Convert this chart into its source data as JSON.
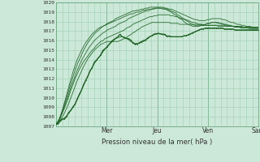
{
  "title": "",
  "xlabel": "Pression niveau de la mer( hPa )",
  "ylabel": "",
  "ylim": [
    1007,
    1020
  ],
  "xlim": [
    0,
    96
  ],
  "yticks": [
    1007,
    1008,
    1009,
    1010,
    1011,
    1012,
    1013,
    1014,
    1015,
    1016,
    1017,
    1018,
    1019,
    1020
  ],
  "day_labels": [
    "Mer",
    "Jeu",
    "Ven",
    "Sam"
  ],
  "day_positions": [
    24,
    48,
    72,
    96
  ],
  "bg_color": "#cce8d8",
  "grid_color": "#9ecfb4",
  "line_color": "#1a6020",
  "font_color": "#333333",
  "series": [
    [
      1007.2,
      1007.3,
      1007.5,
      1007.7,
      1007.9,
      1008.1,
      1008.4,
      1008.7,
      1009.0,
      1009.4,
      1009.8,
      1010.3,
      1010.8,
      1011.3,
      1011.8,
      1012.3,
      1012.8,
      1013.2,
      1013.6,
      1013.9,
      1014.2,
      1014.5,
      1014.8,
      1015.1,
      1015.3,
      1015.6,
      1015.8,
      1016.0,
      1016.2,
      1016.3,
      1016.4,
      1016.4,
      1016.3,
      1016.2,
      1016.1,
      1015.9,
      1015.8,
      1015.7,
      1015.7,
      1015.7,
      1015.8,
      1015.9,
      1016.1,
      1016.2,
      1016.4,
      1016.5,
      1016.6,
      1016.7,
      1016.7,
      1016.7,
      1016.6,
      1016.6,
      1016.5,
      1016.5,
      1016.4,
      1016.4,
      1016.4,
      1016.4,
      1016.4,
      1016.4,
      1016.5,
      1016.5,
      1016.6,
      1016.7,
      1016.8,
      1016.9,
      1017.0,
      1017.1,
      1017.2,
      1017.2,
      1017.3,
      1017.3,
      1017.3,
      1017.3,
      1017.3,
      1017.3,
      1017.3,
      1017.3,
      1017.3,
      1017.2,
      1017.2,
      1017.2,
      1017.2,
      1017.2,
      1017.1,
      1017.1,
      1017.1,
      1017.1,
      1017.1,
      1017.1,
      1017.1,
      1017.1,
      1017.1,
      1017.1,
      1017.1,
      1017.1
    ],
    [
      1007.2,
      1007.4,
      1007.7,
      1008.0,
      1008.4,
      1008.9,
      1009.4,
      1010.0,
      1010.6,
      1011.2,
      1011.8,
      1012.3,
      1012.8,
      1013.3,
      1013.7,
      1014.1,
      1014.4,
      1014.7,
      1015.0,
      1015.2,
      1015.4,
      1015.6,
      1015.7,
      1015.8,
      1015.9,
      1015.9,
      1015.9,
      1015.9,
      1015.9,
      1015.9,
      1016.0,
      1016.1,
      1016.2,
      1016.3,
      1016.5,
      1016.6,
      1016.8,
      1016.9,
      1017.1,
      1017.2,
      1017.4,
      1017.5,
      1017.6,
      1017.7,
      1017.8,
      1017.9,
      1017.9,
      1017.9,
      1017.9,
      1017.9,
      1017.9,
      1017.9,
      1017.9,
      1017.9,
      1017.8,
      1017.8,
      1017.8,
      1017.8,
      1017.7,
      1017.7,
      1017.7,
      1017.7,
      1017.7,
      1017.7,
      1017.7,
      1017.7,
      1017.7,
      1017.7,
      1017.7,
      1017.6,
      1017.6,
      1017.6,
      1017.6,
      1017.6,
      1017.6,
      1017.6,
      1017.5,
      1017.5,
      1017.5,
      1017.5,
      1017.5,
      1017.5,
      1017.5,
      1017.5,
      1017.4,
      1017.4,
      1017.4,
      1017.4,
      1017.4,
      1017.4,
      1017.4,
      1017.4,
      1017.3,
      1017.3,
      1017.3,
      1017.3
    ],
    [
      1007.2,
      1007.5,
      1007.9,
      1008.4,
      1008.9,
      1009.5,
      1010.1,
      1010.8,
      1011.4,
      1012.0,
      1012.5,
      1013.0,
      1013.4,
      1013.8,
      1014.1,
      1014.4,
      1014.7,
      1015.0,
      1015.2,
      1015.5,
      1015.7,
      1015.9,
      1016.0,
      1016.2,
      1016.3,
      1016.4,
      1016.5,
      1016.6,
      1016.7,
      1016.8,
      1016.9,
      1017.0,
      1017.1,
      1017.3,
      1017.4,
      1017.5,
      1017.7,
      1017.8,
      1017.9,
      1018.0,
      1018.1,
      1018.2,
      1018.3,
      1018.4,
      1018.5,
      1018.5,
      1018.6,
      1018.6,
      1018.7,
      1018.7,
      1018.7,
      1018.7,
      1018.7,
      1018.7,
      1018.6,
      1018.6,
      1018.5,
      1018.5,
      1018.4,
      1018.3,
      1018.2,
      1018.2,
      1018.1,
      1018.0,
      1017.9,
      1017.9,
      1017.8,
      1017.7,
      1017.7,
      1017.7,
      1017.6,
      1017.6,
      1017.6,
      1017.6,
      1017.6,
      1017.6,
      1017.6,
      1017.6,
      1017.6,
      1017.6,
      1017.5,
      1017.5,
      1017.5,
      1017.5,
      1017.5,
      1017.5,
      1017.5,
      1017.5,
      1017.4,
      1017.4,
      1017.4,
      1017.4,
      1017.4,
      1017.4,
      1017.4,
      1017.4
    ],
    [
      1007.2,
      1007.5,
      1007.9,
      1008.5,
      1009.1,
      1009.7,
      1010.4,
      1011.1,
      1011.7,
      1012.3,
      1012.9,
      1013.4,
      1013.9,
      1014.3,
      1014.7,
      1015.1,
      1015.4,
      1015.7,
      1016.0,
      1016.2,
      1016.4,
      1016.6,
      1016.8,
      1016.9,
      1017.1,
      1017.2,
      1017.3,
      1017.4,
      1017.5,
      1017.7,
      1017.8,
      1017.9,
      1018.0,
      1018.1,
      1018.3,
      1018.4,
      1018.5,
      1018.6,
      1018.7,
      1018.8,
      1018.9,
      1019.0,
      1019.1,
      1019.1,
      1019.2,
      1019.3,
      1019.3,
      1019.4,
      1019.4,
      1019.4,
      1019.4,
      1019.4,
      1019.4,
      1019.3,
      1019.3,
      1019.2,
      1019.1,
      1019.0,
      1018.9,
      1018.8,
      1018.7,
      1018.6,
      1018.5,
      1018.4,
      1018.3,
      1018.2,
      1018.2,
      1018.1,
      1018.1,
      1018.1,
      1018.1,
      1018.2,
      1018.2,
      1018.3,
      1018.3,
      1018.3,
      1018.3,
      1018.3,
      1018.2,
      1018.2,
      1018.1,
      1018.0,
      1017.9,
      1017.9,
      1017.8,
      1017.7,
      1017.7,
      1017.6,
      1017.6,
      1017.5,
      1017.5,
      1017.5,
      1017.4,
      1017.4,
      1017.4,
      1017.4
    ],
    [
      1007.2,
      1007.5,
      1008.0,
      1008.6,
      1009.3,
      1010.0,
      1010.8,
      1011.5,
      1012.2,
      1012.9,
      1013.5,
      1014.0,
      1014.5,
      1015.0,
      1015.4,
      1015.8,
      1016.1,
      1016.4,
      1016.7,
      1016.9,
      1017.1,
      1017.3,
      1017.5,
      1017.6,
      1017.8,
      1017.9,
      1018.0,
      1018.1,
      1018.3,
      1018.4,
      1018.5,
      1018.6,
      1018.7,
      1018.8,
      1018.9,
      1019.0,
      1019.1,
      1019.1,
      1019.2,
      1019.2,
      1019.3,
      1019.3,
      1019.4,
      1019.4,
      1019.5,
      1019.5,
      1019.5,
      1019.5,
      1019.5,
      1019.5,
      1019.5,
      1019.4,
      1019.3,
      1019.2,
      1019.1,
      1019.0,
      1018.9,
      1018.7,
      1018.6,
      1018.4,
      1018.3,
      1018.1,
      1018.0,
      1017.8,
      1017.7,
      1017.6,
      1017.6,
      1017.6,
      1017.6,
      1017.6,
      1017.7,
      1017.8,
      1017.8,
      1017.9,
      1017.9,
      1017.9,
      1017.9,
      1017.8,
      1017.8,
      1017.7,
      1017.7,
      1017.6,
      1017.6,
      1017.5,
      1017.5,
      1017.5,
      1017.4,
      1017.4,
      1017.4,
      1017.4,
      1017.4,
      1017.3,
      1017.3,
      1017.3,
      1017.3,
      1017.3
    ],
    [
      1007.2,
      1007.5,
      1008.0,
      1008.7,
      1009.5,
      1010.3,
      1011.1,
      1011.9,
      1012.7,
      1013.4,
      1014.0,
      1014.5,
      1015.0,
      1015.4,
      1015.8,
      1016.1,
      1016.4,
      1016.7,
      1016.9,
      1017.1,
      1017.3,
      1017.4,
      1017.5,
      1017.6,
      1017.7,
      1017.8,
      1017.9,
      1018.0,
      1018.1,
      1018.2,
      1018.3,
      1018.4,
      1018.5,
      1018.6,
      1018.7,
      1018.8,
      1018.8,
      1018.9,
      1019.0,
      1019.0,
      1019.1,
      1019.2,
      1019.2,
      1019.3,
      1019.3,
      1019.3,
      1019.4,
      1019.4,
      1019.4,
      1019.4,
      1019.3,
      1019.3,
      1019.2,
      1019.1,
      1019.0,
      1018.8,
      1018.7,
      1018.5,
      1018.3,
      1018.2,
      1018.0,
      1017.8,
      1017.7,
      1017.6,
      1017.5,
      1017.5,
      1017.5,
      1017.5,
      1017.6,
      1017.6,
      1017.7,
      1017.8,
      1017.8,
      1017.9,
      1017.9,
      1017.9,
      1017.8,
      1017.8,
      1017.7,
      1017.7,
      1017.6,
      1017.6,
      1017.5,
      1017.5,
      1017.4,
      1017.4,
      1017.4,
      1017.3,
      1017.3,
      1017.3,
      1017.3,
      1017.2,
      1017.2,
      1017.2,
      1017.2,
      1017.2
    ]
  ],
  "wiggly_series": [
    [
      1007.2,
      1007.35,
      1007.5,
      1007.7,
      1007.95,
      1008.15,
      1008.45,
      1008.7,
      1009.05,
      1009.4,
      1009.8,
      1010.3,
      1010.8,
      1011.3,
      1011.8,
      1012.35,
      1012.8,
      1013.25,
      1013.65,
      1013.95,
      1014.25,
      1014.55,
      1014.85,
      1015.15,
      1015.4,
      1015.65,
      1015.85,
      1016.05,
      1016.2,
      1016.35,
      1016.45,
      1016.45,
      1016.4,
      1016.3,
      1016.15,
      1015.95,
      1015.8,
      1015.7,
      1015.7,
      1015.7,
      1015.8,
      1015.95,
      1016.1,
      1016.25,
      1016.4,
      1016.5,
      1016.6,
      1016.7,
      1016.7,
      1016.7,
      1016.65,
      1016.6,
      1016.55,
      1016.5,
      1016.45,
      1016.4,
      1016.4,
      1016.4,
      1016.4,
      1016.4,
      1016.5,
      1016.5,
      1016.6,
      1016.7,
      1016.8,
      1016.9,
      1017.0,
      1017.1,
      1017.2,
      1017.2,
      1017.3,
      1017.3,
      1017.3,
      1017.3,
      1017.3,
      1017.3,
      1017.3,
      1017.3,
      1017.3,
      1017.2,
      1017.2,
      1017.2,
      1017.2,
      1017.2,
      1017.1,
      1017.1,
      1017.1,
      1017.1,
      1017.1,
      1017.1,
      1017.1,
      1017.1,
      1017.1,
      1017.1,
      1017.1,
      1017.1
    ]
  ]
}
